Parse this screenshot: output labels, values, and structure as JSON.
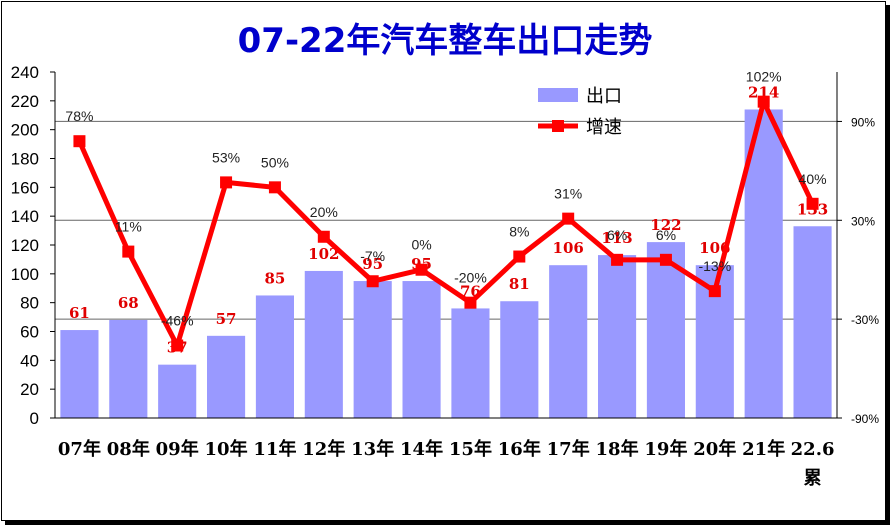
{
  "chart_data": {
    "type": "bar",
    "title": "07-22年汽车整车出口走势",
    "categories": [
      "07年",
      "08年",
      "09年",
      "10年",
      "11年",
      "12年",
      "13年",
      "14年",
      "15年",
      "16年",
      "17年",
      "18年",
      "19年",
      "20年",
      "21年",
      "22.6累"
    ],
    "series": [
      {
        "name": "出口",
        "type": "bar",
        "axis": "left",
        "color": "#9999ff",
        "values": [
          61,
          68,
          37,
          57,
          85,
          102,
          95,
          95,
          76,
          81,
          106,
          113,
          122,
          106,
          214,
          133
        ],
        "value_labels": [
          "61",
          "68",
          "37",
          "57",
          "85",
          "102",
          "95",
          "95",
          "76",
          "81",
          "106",
          "113",
          "122",
          "106",
          "214",
          "133"
        ]
      },
      {
        "name": "增速",
        "type": "line",
        "axis": "right",
        "color": "#ff0000",
        "values": [
          78,
          11,
          -46,
          53,
          50,
          20,
          -7,
          0,
          -20,
          8,
          31,
          6,
          6,
          -13,
          102,
          40
        ],
        "value_labels": [
          "78%",
          "11%",
          "-46%",
          "53%",
          "50%",
          "20%",
          "-7%",
          "0%",
          "-20%",
          "8%",
          "31%",
          "6%",
          "6%",
          "-13%",
          "102%",
          "40%"
        ]
      }
    ],
    "y_left": {
      "min": 0,
      "max": 240,
      "step": 20,
      "ticks": [
        "0",
        "20",
        "40",
        "60",
        "80",
        "100",
        "120",
        "140",
        "160",
        "180",
        "200",
        "220",
        "240"
      ]
    },
    "y_right": {
      "min": -90,
      "max": 120,
      "ticks": [
        "90%",
        "30%",
        "-30%",
        "-90%"
      ],
      "tick_values": [
        90,
        30,
        -30,
        -90
      ]
    },
    "grid": "horizontal at right-axis ticks",
    "legend_position": "top-center"
  }
}
